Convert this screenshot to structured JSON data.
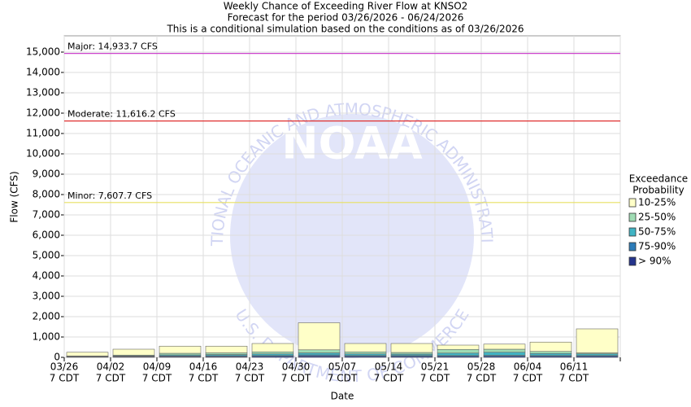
{
  "chart_data": {
    "type": "stacked_bar",
    "title": "Weekly Chance of Exceeding River Flow at KNSO2",
    "subtitle": "Forecast for the period 03/26/2026 - 06/24/2026",
    "subtitle2": "This is a conditional simulation based on the conditions as of 03/26/2026",
    "x_label": "Date",
    "y_label": "Flow (CFS)",
    "categories": [
      "03/26",
      "04/02",
      "04/09",
      "04/16",
      "04/23",
      "04/30",
      "05/07",
      "05/14",
      "05/21",
      "05/28",
      "06/04",
      "06/11"
    ],
    "category_sublabel": "7 CDT",
    "legend_title": "Exceedance",
    "legend_title2": "Probability",
    "series": [
      {
        "name": "10-25%",
        "color": "#ffffc8",
        "values": [
          180,
          290,
          350,
          330,
          410,
          1330,
          410,
          440,
          210,
          250,
          460,
          1180
        ]
      },
      {
        "name": "25-50%",
        "color": "#a0dcb4",
        "values": [
          20,
          35,
          80,
          80,
          100,
          150,
          100,
          80,
          180,
          150,
          100,
          50
        ]
      },
      {
        "name": "50-75%",
        "color": "#40b4c4",
        "values": [
          15,
          25,
          50,
          60,
          80,
          100,
          80,
          70,
          120,
          150,
          100,
          80
        ]
      },
      {
        "name": "75-90%",
        "color": "#2c7cb8",
        "values": [
          15,
          20,
          30,
          40,
          40,
          60,
          40,
          40,
          40,
          50,
          40,
          40
        ]
      },
      {
        "name": "> 90%",
        "color": "#24348c",
        "values": [
          20,
          30,
          40,
          40,
          50,
          60,
          50,
          50,
          50,
          50,
          50,
          50
        ]
      }
    ],
    "thresholds": [
      {
        "value": 14933.7,
        "label": "Major: 14,933.7 CFS",
        "color": "#cc44cc"
      },
      {
        "value": 11616.2,
        "label": "Moderate: 11,616.2 CFS",
        "color": "#e03030"
      },
      {
        "value": 7607.7,
        "label": "Minor: 7,607.7 CFS",
        "color": "#e8e060"
      }
    ],
    "ylim": [
      0,
      15800
    ],
    "yticks": [
      0,
      {
        "value": 1000,
        "label": "1,000"
      },
      {
        "value": 2000,
        "label": "2,000"
      },
      {
        "value": 3000,
        "label": "3,000"
      },
      {
        "value": 4000,
        "label": "4,000"
      },
      {
        "value": 5000,
        "label": "5,000"
      },
      {
        "value": 6000,
        "label": "6,000"
      },
      {
        "value": 7000,
        "label": "7,000"
      },
      {
        "value": 8000,
        "label": "8,000"
      },
      {
        "value": 9000,
        "label": "9,000"
      },
      {
        "value": 10000,
        "label": "10,000"
      },
      {
        "value": 11000,
        "label": "11,000"
      },
      {
        "value": 12000,
        "label": "12,000"
      },
      {
        "value": 13000,
        "label": "13,000"
      },
      {
        "value": 14000,
        "label": "14,000"
      },
      {
        "value": 15000,
        "label": "15,000"
      }
    ],
    "grid": true,
    "watermark": {
      "logo": "NOAA",
      "top_arc": "NATIONAL OCEANIC AND ATMOSPHERIC ADMINISTRATION",
      "bottom_arc": "U.S. DEPARTMENT OF COMMERCE"
    }
  }
}
